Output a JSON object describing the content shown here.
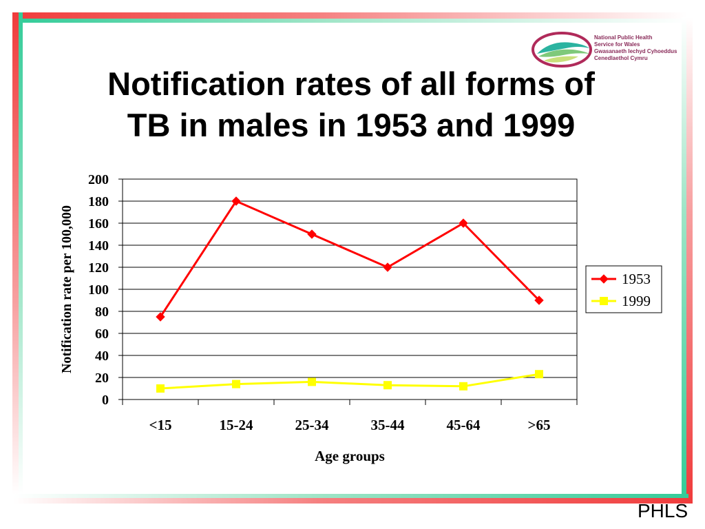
{
  "slide": {
    "title_line1": "Notification rates of all forms of",
    "title_line2": "TB in males in 1953 and 1999",
    "footer": "PHLS"
  },
  "logo": {
    "line1": "National Public Health",
    "line2": "Service for Wales",
    "line3": "Gwasanaeth Iechyd Cyhoeddus",
    "line4": "Cenedlaethol Cymru"
  },
  "colors": {
    "frame_red": "#f03c3c",
    "frame_green": "#33cc99",
    "series_1953": "#ff0000",
    "series_1999": "#ffff00"
  },
  "chart_data": {
    "type": "line",
    "categories": [
      "<15",
      "15-24",
      "25-34",
      "35-44",
      "45-64",
      ">65"
    ],
    "series": [
      {
        "name": "1953",
        "values": [
          75,
          180,
          150,
          120,
          160,
          90
        ],
        "marker": "diamond",
        "color": "#ff0000"
      },
      {
        "name": "1999",
        "values": [
          10,
          14,
          16,
          13,
          12,
          23
        ],
        "marker": "square",
        "color": "#ffff00"
      }
    ],
    "xlabel": "Age groups",
    "ylabel": "Notification rate per 100,000",
    "ylim": [
      0,
      200
    ],
    "yticks": [
      0,
      20,
      40,
      60,
      80,
      100,
      120,
      140,
      160,
      180,
      200
    ],
    "grid": true,
    "legend": "right"
  }
}
